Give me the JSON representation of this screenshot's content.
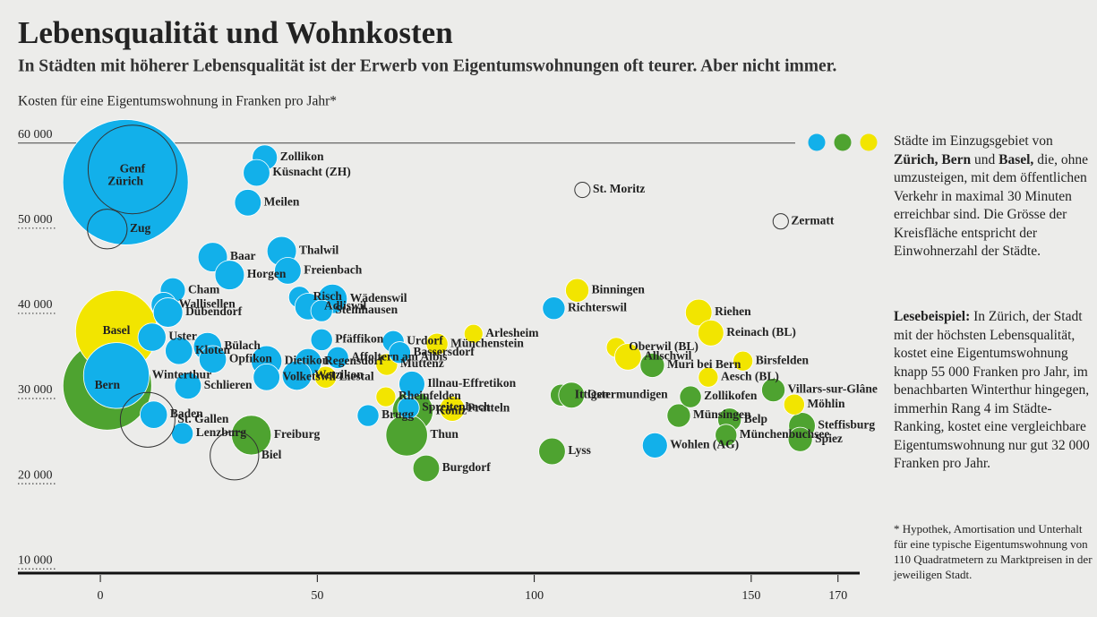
{
  "chart_data": {
    "type": "bubble",
    "title": "Lebensqualität und Wohnkosten",
    "subtitle": "In Städten mit höherer Lebensqualität ist der Erwerb von Eigentumswohnungen oft teurer. Aber nicht immer.",
    "y_label": "Kosten für eine Eigentumswohnung in Franken pro Jahr*",
    "xlim": [
      -19,
      175
    ],
    "ylim": [
      9500,
      61000
    ],
    "xticks": [
      0,
      50,
      100,
      150,
      170
    ],
    "yticks": [
      {
        "value": 10000,
        "label": "10 000"
      },
      {
        "value": 20000,
        "label": "20 000"
      },
      {
        "value": 30000,
        "label": "30 000"
      },
      {
        "value": 40000,
        "label": "40 000"
      },
      {
        "value": 50000,
        "label": "50 000"
      },
      {
        "value": 60000,
        "label": "60 000"
      }
    ],
    "legend_colors": [
      "#12b0ea",
      "#4ea330",
      "#f2e500"
    ],
    "legend_text": [
      {
        "text": "Städte im Einzugsgebiet von "
      },
      {
        "text": "Zürich, Bern",
        "bold": true
      },
      {
        "text": " und "
      },
      {
        "text": "Basel,",
        "bold": true
      },
      {
        "text": " die, ohne umzusteigen, mit dem öffentlichen Verkehr in maximal 30 Minuten erreichbar sind. Die Grösse der Kreisfläche entspricht der Einwohnerzahl der Städte."
      }
    ],
    "example_text": [
      {
        "text": "Lesebeispiel:",
        "bold": true
      },
      {
        "text": " In Zürich, der Stadt mit der höchsten Lebensqualität, kostet eine Eigentumswohnung knapp 55 000 Franken pro Jahr, im benachbarten Winterthur hingegen, immerhin Rang 4 im Städte-Ranking, kostet eine vergleichbare Eigentumswohnung nur gut 32 000 Franken pro Jahr."
      }
    ],
    "footnote": "* Hypothek, Amortisation und Unterhalt für eine typische Eigentumswohnung von 110 Quadratmetern zu Marktpreisen in der jeweiligen Stadt.",
    "series": [
      {
        "color": "#4ea330",
        "filled": true,
        "labels": [
          "Bern",
          "Freiburg",
          "Köniz",
          "Thun",
          "Burgdorf",
          "Lyss",
          "Ittigen",
          "Ostermundigen",
          "Muri bei Bern",
          "Münsingen",
          "Zollikofen",
          "Belp",
          "Münchenbuchsee",
          "Villars-sur-Glâne",
          "Steffisburg",
          "Spiez"
        ],
        "x": [
          1.6,
          34.8,
          72,
          70.6,
          75.1,
          104.1,
          106.2,
          108.6,
          127.2,
          133.3,
          136,
          145,
          144.2,
          155.1,
          161.7,
          161.3
        ],
        "values": [
          31500,
          25700,
          28500,
          25700,
          21800,
          23800,
          30400,
          30400,
          33900,
          28000,
          30200,
          27500,
          25700,
          31000,
          26800,
          25200
        ],
        "sizes": [
          200,
          40,
          42,
          44,
          18,
          18,
          12,
          17,
          15,
          14,
          12,
          14,
          12,
          14,
          18,
          15
        ]
      },
      {
        "color": "#f2e500",
        "filled": true,
        "labels": [
          "Basel",
          "Binningen",
          "Arlesheim",
          "Münchenstein",
          "Muttenz",
          "Pratteln",
          "Rheinfelden",
          "Liestal",
          "Oberwil (BL)",
          "Allschwil",
          "Riehen",
          "Reinach (BL)",
          "Birsfelden",
          "Aesch (BL)",
          "Möhlin"
        ],
        "x": [
          3.7,
          109.9,
          86,
          77.6,
          66,
          81.1,
          65.8,
          51.9,
          118.9,
          121.6,
          137.9,
          140.7,
          148.1,
          140.1,
          159.9
        ],
        "values": [
          37900,
          42700,
          37600,
          36400,
          34000,
          28800,
          30200,
          32500,
          36000,
          34900,
          40100,
          37700,
          34400,
          32500,
          29300
        ],
        "sizes": [
          170,
          14,
          9,
          12,
          12,
          16,
          10,
          12,
          10,
          18,
          18,
          17,
          10,
          10,
          11
        ]
      },
      {
        "color": "#12b0ea",
        "filled": true,
        "labels": [
          "Zürich",
          "Zollikon",
          "Küsnacht (ZH)",
          "Meilen",
          "Baar",
          "Horgen",
          "Thalwil",
          "Freienbach",
          "Wädenswil",
          "Risch",
          "Adliswil",
          "Steinhausen",
          "Cham",
          "Wallisellen",
          "Dübendorf",
          "Uster",
          "Bülach",
          "Opfikon",
          "Kloten",
          "Dietikon",
          "Regensdorf",
          "Wetzikon",
          "Volketswil",
          "Schlieren",
          "Winterthur",
          "Baden",
          "Lenzburg",
          "Pfäffikon",
          "Affoltern am Albis",
          "Urdorf",
          "Bassersdorf",
          "Illnau-Effretikon",
          "Brugg",
          "Spreitenbach",
          "Richterswil",
          "Wohlen (AG)"
        ],
        "x": [
          5.8,
          37.9,
          36,
          34,
          25.9,
          29.8,
          41.8,
          43.2,
          53.5,
          45.9,
          47.9,
          51,
          16.7,
          14.6,
          15.6,
          11.9,
          24.7,
          25.9,
          18.1,
          38.3,
          47.9,
          45.3,
          38.3,
          20.2,
          3.7,
          12.3,
          18.9,
          51,
          54.7,
          67.5,
          69,
          71.8,
          61.7,
          71,
          104.5,
          127.8
        ],
        "values": [
          55400,
          58300,
          56500,
          53000,
          46600,
          44500,
          47300,
          45000,
          41700,
          41900,
          40800,
          40300,
          42700,
          41000,
          40100,
          37200,
          36100,
          34600,
          35600,
          34400,
          34300,
          32700,
          32500,
          31500,
          32700,
          28100,
          25900,
          36900,
          34800,
          36700,
          35400,
          31700,
          28000,
          28900,
          40600,
          24500
        ],
        "sizes": [
          400,
          16,
          18,
          18,
          22,
          22,
          22,
          18,
          22,
          12,
          18,
          12,
          16,
          16,
          22,
          20,
          20,
          19,
          19,
          24,
          18,
          22,
          18,
          18,
          110,
          19,
          12,
          12,
          12,
          12,
          12,
          17,
          12,
          12,
          13,
          16
        ]
      },
      {
        "color": "#333333",
        "filled": false,
        "labels": [
          "Genf",
          "Zug",
          "St. Gallen",
          "Biel",
          "St. Moritz",
          "Zermatt"
        ],
        "x": [
          7.4,
          1.6,
          10.9,
          30.9,
          111.1,
          156.8
        ],
        "values": [
          56900,
          49900,
          27500,
          23300,
          54500,
          50800
        ],
        "sizes": [
          200,
          40,
          76,
          60,
          6,
          6
        ]
      }
    ]
  }
}
